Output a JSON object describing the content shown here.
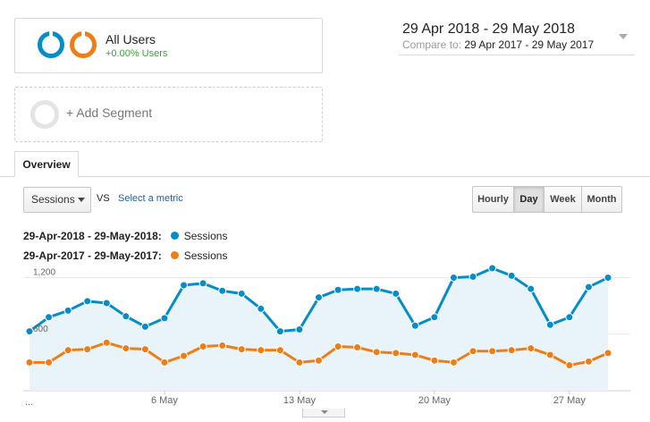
{
  "segments": {
    "all_users": {
      "title": "All Users",
      "subtitle": "+0.00% Users"
    },
    "add_segment": {
      "label": "+ Add Segment"
    }
  },
  "date_range": {
    "main": "29 Apr 2018 - 29 May 2018",
    "compare_label": "Compare to:",
    "compare_value": "29 Apr 2017 - 29 May 2017"
  },
  "tabs": {
    "overview": "Overview"
  },
  "controls": {
    "metric": "Sessions",
    "vs": "VS",
    "select_metric": "Select a metric",
    "granularity": [
      "Hourly",
      "Day",
      "Week",
      "Month"
    ],
    "active_granularity": "Day"
  },
  "legend": [
    {
      "range": "29-Apr-2018 - 29-May-2018:",
      "series": "Sessions",
      "color": "#058dc7"
    },
    {
      "range": "29-Apr-2017 - 29-May-2017:",
      "series": "Sessions",
      "color": "#ed7e17"
    }
  ],
  "chart_data": {
    "type": "line",
    "x": [
      "29 Apr",
      "30 Apr",
      "1 May",
      "2 May",
      "3 May",
      "4 May",
      "5 May",
      "6 May",
      "7 May",
      "8 May",
      "9 May",
      "10 May",
      "11 May",
      "12 May",
      "13 May",
      "14 May",
      "15 May",
      "16 May",
      "17 May",
      "18 May",
      "19 May",
      "20 May",
      "21 May",
      "22 May",
      "23 May",
      "24 May",
      "25 May",
      "26 May",
      "27 May",
      "28 May",
      "29 May"
    ],
    "x_tick_labels": [
      "...",
      "6 May",
      "13 May",
      "20 May",
      "27 May"
    ],
    "y_tick_labels": [
      "1,200",
      "600"
    ],
    "ylim": [
      0,
      1300
    ],
    "series": [
      {
        "name": "29-Apr-2018 - 29-May-2018: Sessions",
        "color": "#058dc7",
        "area": true,
        "values": [
          630,
          780,
          850,
          950,
          930,
          790,
          680,
          770,
          1120,
          1140,
          1060,
          1030,
          870,
          630,
          650,
          990,
          1070,
          1080,
          1080,
          1030,
          690,
          780,
          1200,
          1210,
          1300,
          1220,
          1080,
          700,
          780,
          1100,
          1200
        ]
      },
      {
        "name": "29-Apr-2017 - 29-May-2017: Sessions",
        "color": "#ed7e17",
        "area": false,
        "values": [
          300,
          300,
          430,
          440,
          510,
          450,
          440,
          300,
          370,
          470,
          480,
          440,
          430,
          430,
          300,
          320,
          470,
          460,
          410,
          400,
          380,
          320,
          300,
          420,
          420,
          430,
          450,
          380,
          270,
          310,
          400
        ]
      }
    ],
    "grid": true,
    "legend_position": "top-left"
  }
}
